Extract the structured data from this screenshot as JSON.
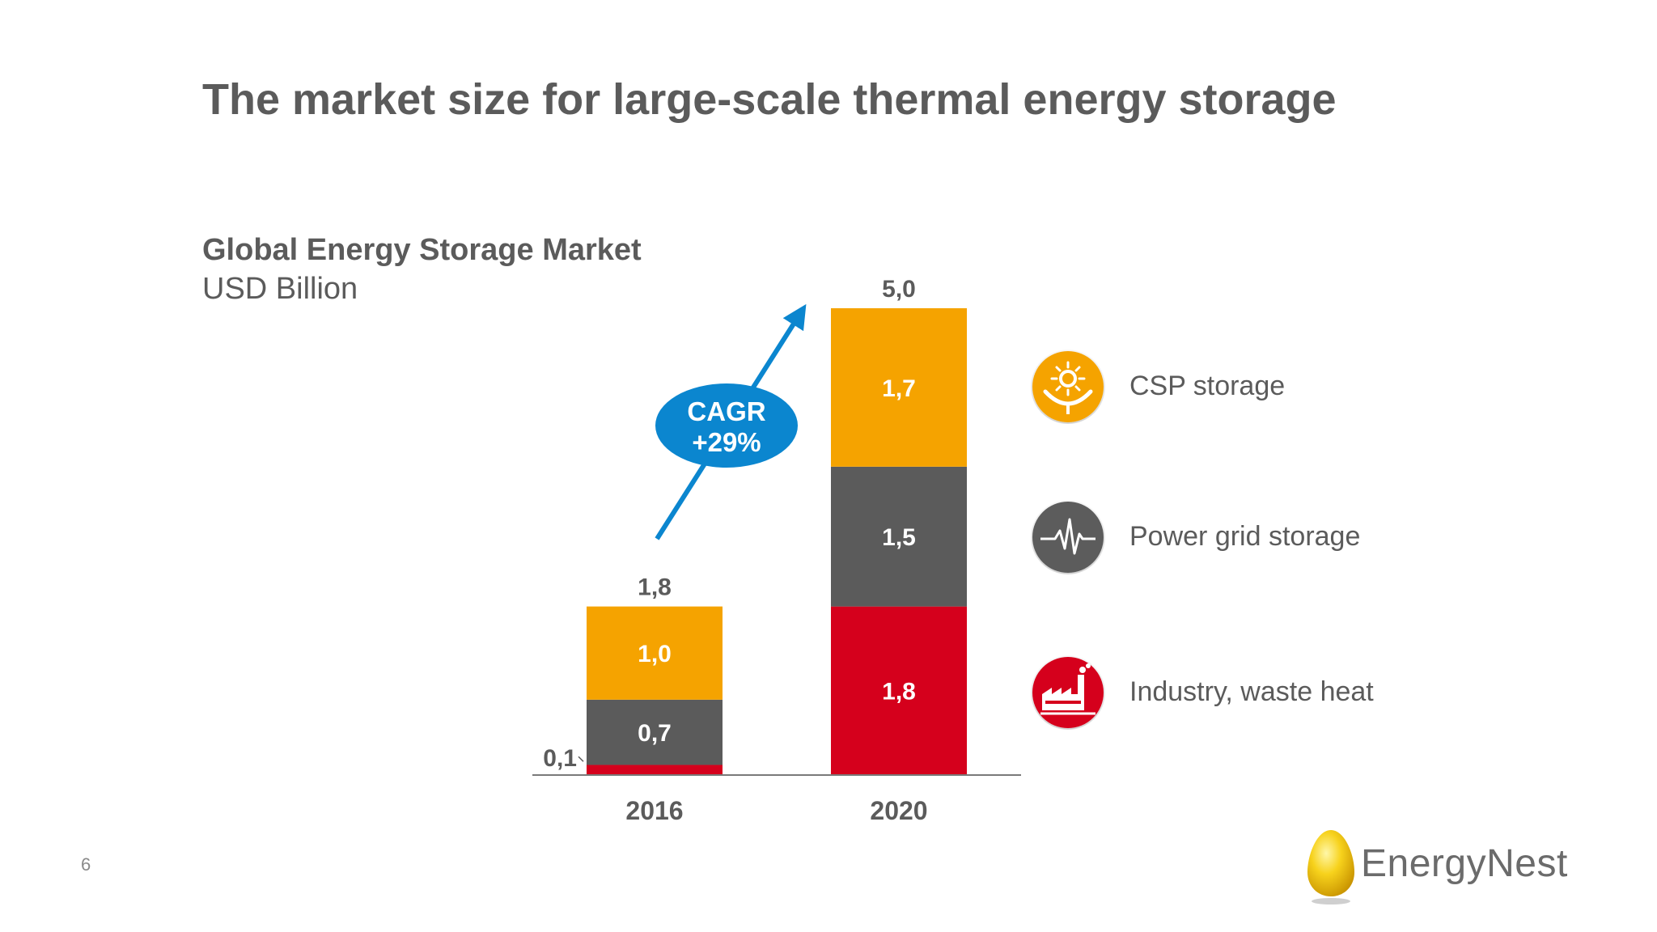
{
  "slide": {
    "title": "The market size for large-scale thermal energy storage",
    "page_number": "6",
    "logo_text": "EnergyNest"
  },
  "chart_data": {
    "type": "bar",
    "stacked": true,
    "title": "Global Energy Storage Market",
    "subtitle": "USD Billion",
    "categories": [
      "2016",
      "2020"
    ],
    "series": [
      {
        "name": "Industry, waste heat",
        "color": "#d5001c",
        "values": [
          0.1,
          1.8
        ],
        "labels": [
          "0,1",
          "1,8"
        ]
      },
      {
        "name": "Power grid storage",
        "color": "#5b5b5b",
        "values": [
          0.7,
          1.5
        ],
        "labels": [
          "0,7",
          "1,5"
        ]
      },
      {
        "name": "CSP storage",
        "color": "#f5a300",
        "values": [
          1.0,
          1.7
        ],
        "labels": [
          "1,0",
          "1,7"
        ]
      }
    ],
    "totals": [
      1.8,
      5.0
    ],
    "total_labels": [
      "1,8",
      "5,0"
    ],
    "ylim": [
      0,
      5.0
    ],
    "grid": false,
    "legend_position": "right",
    "annotation": {
      "line1": "CAGR",
      "line2": "+29%",
      "color": "#0b86cf"
    }
  },
  "legend_icons": [
    "sun-dish-icon",
    "heartbeat-icon",
    "factory-icon"
  ]
}
